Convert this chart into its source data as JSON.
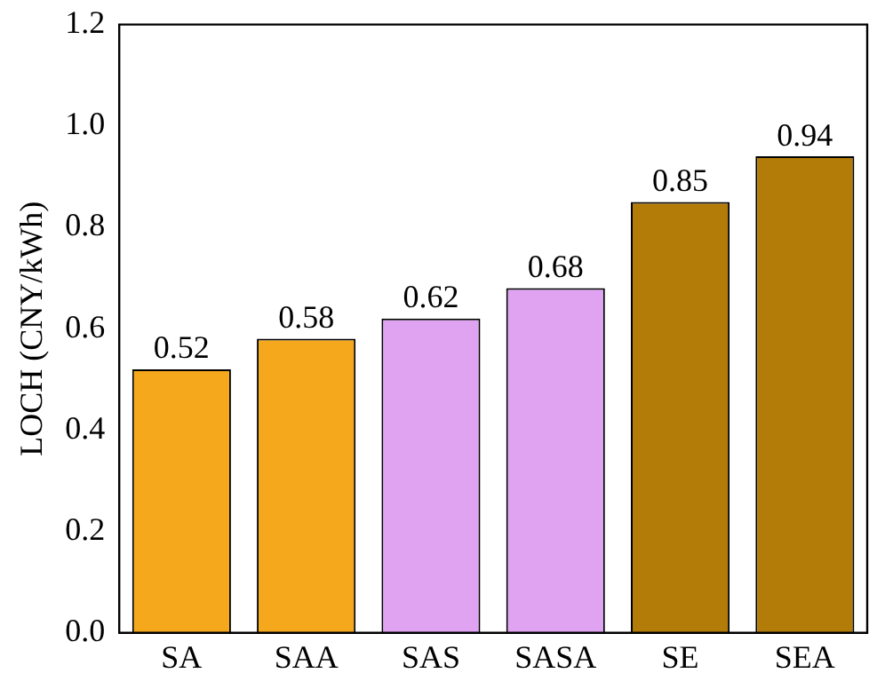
{
  "chart_data": {
    "type": "bar",
    "ylabel": "LOCH (CNY/kWh)",
    "categories": [
      "SA",
      "SAA",
      "SAS",
      "SASA",
      "SE",
      "SEA"
    ],
    "values": [
      0.52,
      0.58,
      0.62,
      0.68,
      0.85,
      0.94
    ],
    "colors": [
      "#f5a81c",
      "#f5a81c",
      "#dfa3f2",
      "#dfa3f2",
      "#b37c08",
      "#b37c08"
    ],
    "ylim": [
      0,
      1.2
    ],
    "yticks": [
      {
        "value": 0,
        "label": "0.0"
      },
      {
        "value": 0.2,
        "label": "0.2"
      },
      {
        "value": 0.4,
        "label": "0.4"
      },
      {
        "value": 0.6,
        "label": "0.6"
      },
      {
        "value": 0.8,
        "label": "0.8"
      },
      {
        "value": 1,
        "label": "1.0"
      },
      {
        "value": 1.2,
        "label": "1.2"
      }
    ],
    "data_labels": true,
    "grid": false,
    "legend": false
  }
}
